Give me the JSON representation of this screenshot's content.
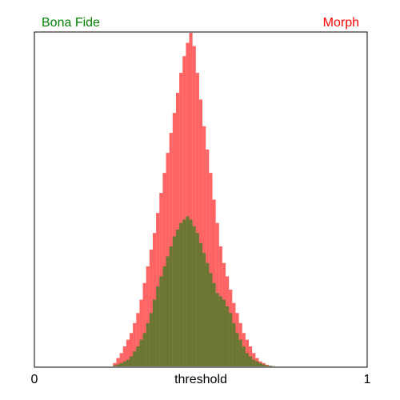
{
  "chart_data": {
    "type": "area",
    "title": "",
    "xlabel": "threshold",
    "ylabel": "",
    "xlim": [
      0,
      1
    ],
    "ylim": [
      0,
      1
    ],
    "x_tick_labels": [
      "0",
      "1"
    ],
    "grid": false,
    "legend": "top",
    "x": [
      0.23,
      0.24,
      0.25,
      0.26,
      0.27,
      0.28,
      0.29,
      0.3,
      0.31,
      0.32,
      0.33,
      0.34,
      0.35,
      0.36,
      0.37,
      0.38,
      0.39,
      0.4,
      0.41,
      0.42,
      0.43,
      0.44,
      0.45,
      0.46,
      0.47,
      0.48,
      0.49,
      0.5,
      0.51,
      0.52,
      0.53,
      0.54,
      0.55,
      0.56,
      0.57,
      0.58,
      0.59,
      0.6,
      0.61,
      0.62,
      0.63,
      0.64,
      0.65,
      0.66,
      0.67,
      0.68,
      0.69,
      0.7,
      0.71,
      0.72,
      0.73,
      0.74,
      0.75
    ],
    "series": [
      {
        "name": "Bona Fide",
        "color": "#008000",
        "fill": "#2e7d1e",
        "values": [
          0,
          0.003,
          0.006,
          0.01,
          0.015,
          0.02,
          0.03,
          0.045,
          0.06,
          0.08,
          0.1,
          0.13,
          0.16,
          0.2,
          0.24,
          0.27,
          0.3,
          0.33,
          0.36,
          0.39,
          0.41,
          0.43,
          0.44,
          0.45,
          0.44,
          0.42,
          0.4,
          0.37,
          0.34,
          0.31,
          0.28,
          0.25,
          0.22,
          0.21,
          0.2,
          0.18,
          0.16,
          0.13,
          0.1,
          0.08,
          0.06,
          0.04,
          0.03,
          0.02,
          0.015,
          0.01,
          0.006,
          0.003,
          0.002,
          0.001,
          0,
          0,
          0
        ]
      },
      {
        "name": "Morph",
        "color": "#ff0000",
        "fill": "#ff3030",
        "values": [
          0,
          0.01,
          0.025,
          0.04,
          0.06,
          0.08,
          0.1,
          0.13,
          0.16,
          0.2,
          0.25,
          0.3,
          0.35,
          0.4,
          0.46,
          0.52,
          0.58,
          0.64,
          0.7,
          0.76,
          0.82,
          0.88,
          0.93,
          0.97,
          1.0,
          0.96,
          0.88,
          0.8,
          0.72,
          0.65,
          0.58,
          0.5,
          0.43,
          0.36,
          0.31,
          0.27,
          0.23,
          0.19,
          0.16,
          0.13,
          0.1,
          0.08,
          0.06,
          0.04,
          0.025,
          0.015,
          0.01,
          0.005,
          0.002,
          0,
          0,
          0,
          0
        ]
      }
    ]
  }
}
